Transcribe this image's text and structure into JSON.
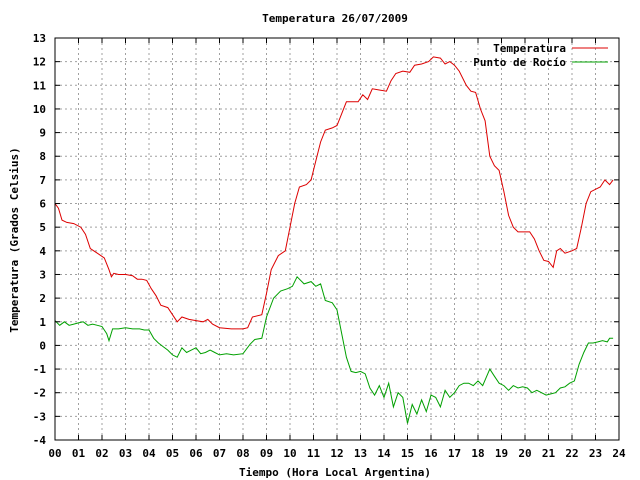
{
  "chart_data": {
    "type": "line",
    "title": "Temperatura 26/07/2009",
    "xlabel": "Tiempo (Hora Local Argentina)",
    "ylabel": "Temperatura (Grados Celsius)",
    "xlim": [
      0,
      24
    ],
    "ylim": [
      -4,
      13
    ],
    "x_ticks": [
      "00",
      "01",
      "02",
      "03",
      "04",
      "05",
      "06",
      "07",
      "08",
      "09",
      "10",
      "11",
      "12",
      "13",
      "14",
      "15",
      "16",
      "17",
      "18",
      "19",
      "20",
      "21",
      "22",
      "23",
      "24"
    ],
    "y_ticks": [
      -4,
      -3,
      -2,
      -1,
      0,
      1,
      2,
      3,
      4,
      5,
      6,
      7,
      8,
      9,
      10,
      11,
      12,
      13
    ],
    "grid": true,
    "legend_position": "top-right",
    "series": [
      {
        "name": "Temperatura",
        "color": "#dd0000",
        "points": [
          [
            0,
            6.0
          ],
          [
            0.15,
            5.8
          ],
          [
            0.3,
            5.3
          ],
          [
            0.5,
            5.2
          ],
          [
            0.8,
            5.15
          ],
          [
            1.1,
            5.0
          ],
          [
            1.3,
            4.7
          ],
          [
            1.5,
            4.1
          ],
          [
            1.8,
            3.9
          ],
          [
            2.1,
            3.7
          ],
          [
            2.3,
            3.2
          ],
          [
            2.4,
            2.9
          ],
          [
            2.5,
            3.05
          ],
          [
            2.7,
            3.0
          ],
          [
            3.0,
            3.0
          ],
          [
            3.3,
            2.95
          ],
          [
            3.5,
            2.8
          ],
          [
            3.7,
            2.8
          ],
          [
            3.9,
            2.75
          ],
          [
            4.1,
            2.4
          ],
          [
            4.3,
            2.1
          ],
          [
            4.5,
            1.7
          ],
          [
            4.8,
            1.6
          ],
          [
            5.0,
            1.3
          ],
          [
            5.2,
            1.0
          ],
          [
            5.4,
            1.2
          ],
          [
            5.7,
            1.1
          ],
          [
            6.0,
            1.05
          ],
          [
            6.3,
            1.0
          ],
          [
            6.5,
            1.1
          ],
          [
            6.7,
            0.9
          ],
          [
            7.0,
            0.75
          ],
          [
            7.5,
            0.7
          ],
          [
            8.0,
            0.7
          ],
          [
            8.2,
            0.75
          ],
          [
            8.4,
            1.2
          ],
          [
            8.8,
            1.3
          ],
          [
            9.0,
            2.2
          ],
          [
            9.2,
            3.2
          ],
          [
            9.5,
            3.8
          ],
          [
            9.8,
            4.0
          ],
          [
            10.0,
            5.0
          ],
          [
            10.2,
            6.0
          ],
          [
            10.4,
            6.7
          ],
          [
            10.7,
            6.8
          ],
          [
            10.9,
            7.0
          ],
          [
            11.1,
            7.8
          ],
          [
            11.3,
            8.6
          ],
          [
            11.5,
            9.1
          ],
          [
            11.8,
            9.2
          ],
          [
            12.0,
            9.3
          ],
          [
            12.2,
            9.8
          ],
          [
            12.4,
            10.3
          ],
          [
            12.6,
            10.3
          ],
          [
            12.9,
            10.3
          ],
          [
            13.1,
            10.6
          ],
          [
            13.3,
            10.4
          ],
          [
            13.5,
            10.85
          ],
          [
            13.8,
            10.8
          ],
          [
            14.1,
            10.75
          ],
          [
            14.3,
            11.2
          ],
          [
            14.5,
            11.5
          ],
          [
            14.8,
            11.6
          ],
          [
            15.1,
            11.55
          ],
          [
            15.3,
            11.85
          ],
          [
            15.6,
            11.9
          ],
          [
            15.9,
            12.0
          ],
          [
            16.1,
            12.2
          ],
          [
            16.4,
            12.15
          ],
          [
            16.6,
            11.9
          ],
          [
            16.8,
            12.0
          ],
          [
            17.0,
            11.85
          ],
          [
            17.2,
            11.6
          ],
          [
            17.5,
            11.0
          ],
          [
            17.7,
            10.75
          ],
          [
            17.9,
            10.7
          ],
          [
            18.1,
            10.0
          ],
          [
            18.3,
            9.5
          ],
          [
            18.5,
            8.0
          ],
          [
            18.7,
            7.6
          ],
          [
            18.9,
            7.4
          ],
          [
            19.1,
            6.5
          ],
          [
            19.3,
            5.5
          ],
          [
            19.5,
            5.0
          ],
          [
            19.7,
            4.8
          ],
          [
            20.0,
            4.8
          ],
          [
            20.2,
            4.8
          ],
          [
            20.4,
            4.5
          ],
          [
            20.6,
            4.0
          ],
          [
            20.8,
            3.6
          ],
          [
            21.0,
            3.55
          ],
          [
            21.2,
            3.3
          ],
          [
            21.35,
            4.0
          ],
          [
            21.5,
            4.1
          ],
          [
            21.7,
            3.9
          ],
          [
            22.0,
            4.0
          ],
          [
            22.2,
            4.1
          ],
          [
            22.4,
            5.0
          ],
          [
            22.6,
            6.0
          ],
          [
            22.8,
            6.5
          ],
          [
            23.0,
            6.6
          ],
          [
            23.2,
            6.7
          ],
          [
            23.4,
            7.0
          ],
          [
            23.6,
            6.8
          ],
          [
            23.75,
            7.0
          ]
        ]
      },
      {
        "name": "Punto de Rocío",
        "color": "#00a000",
        "points": [
          [
            0,
            1.05
          ],
          [
            0.2,
            0.85
          ],
          [
            0.4,
            1.0
          ],
          [
            0.6,
            0.85
          ],
          [
            0.8,
            0.9
          ],
          [
            1.0,
            0.95
          ],
          [
            1.2,
            1.0
          ],
          [
            1.4,
            0.85
          ],
          [
            1.6,
            0.9
          ],
          [
            1.8,
            0.85
          ],
          [
            2.0,
            0.8
          ],
          [
            2.2,
            0.5
          ],
          [
            2.3,
            0.2
          ],
          [
            2.45,
            0.7
          ],
          [
            2.7,
            0.7
          ],
          [
            3.0,
            0.75
          ],
          [
            3.3,
            0.7
          ],
          [
            3.6,
            0.7
          ],
          [
            3.8,
            0.65
          ],
          [
            4.0,
            0.65
          ],
          [
            4.2,
            0.3
          ],
          [
            4.4,
            0.1
          ],
          [
            4.6,
            -0.05
          ],
          [
            4.8,
            -0.2
          ],
          [
            5.0,
            -0.4
          ],
          [
            5.2,
            -0.5
          ],
          [
            5.4,
            -0.1
          ],
          [
            5.6,
            -0.3
          ],
          [
            5.8,
            -0.2
          ],
          [
            6.0,
            -0.1
          ],
          [
            6.2,
            -0.35
          ],
          [
            6.4,
            -0.3
          ],
          [
            6.6,
            -0.2
          ],
          [
            6.8,
            -0.3
          ],
          [
            7.0,
            -0.4
          ],
          [
            7.3,
            -0.35
          ],
          [
            7.6,
            -0.4
          ],
          [
            8.0,
            -0.35
          ],
          [
            8.3,
            0.05
          ],
          [
            8.5,
            0.25
          ],
          [
            8.8,
            0.3
          ],
          [
            9.0,
            1.2
          ],
          [
            9.3,
            2.0
          ],
          [
            9.6,
            2.3
          ],
          [
            9.9,
            2.4
          ],
          [
            10.1,
            2.5
          ],
          [
            10.3,
            2.9
          ],
          [
            10.6,
            2.6
          ],
          [
            10.9,
            2.7
          ],
          [
            11.1,
            2.5
          ],
          [
            11.3,
            2.6
          ],
          [
            11.5,
            1.9
          ],
          [
            11.8,
            1.8
          ],
          [
            12.0,
            1.5
          ],
          [
            12.2,
            0.5
          ],
          [
            12.4,
            -0.5
          ],
          [
            12.6,
            -1.1
          ],
          [
            12.8,
            -1.15
          ],
          [
            13.0,
            -1.1
          ],
          [
            13.2,
            -1.2
          ],
          [
            13.4,
            -1.8
          ],
          [
            13.6,
            -2.1
          ],
          [
            13.8,
            -1.7
          ],
          [
            14.0,
            -2.2
          ],
          [
            14.2,
            -1.6
          ],
          [
            14.4,
            -2.6
          ],
          [
            14.6,
            -2.0
          ],
          [
            14.8,
            -2.2
          ],
          [
            15.0,
            -3.3
          ],
          [
            15.2,
            -2.5
          ],
          [
            15.4,
            -2.9
          ],
          [
            15.6,
            -2.3
          ],
          [
            15.8,
            -2.8
          ],
          [
            16.0,
            -2.1
          ],
          [
            16.2,
            -2.2
          ],
          [
            16.4,
            -2.6
          ],
          [
            16.6,
            -1.9
          ],
          [
            16.8,
            -2.2
          ],
          [
            17.0,
            -2.0
          ],
          [
            17.2,
            -1.7
          ],
          [
            17.4,
            -1.6
          ],
          [
            17.6,
            -1.6
          ],
          [
            17.8,
            -1.7
          ],
          [
            18.0,
            -1.5
          ],
          [
            18.2,
            -1.7
          ],
          [
            18.5,
            -1.0
          ],
          [
            18.7,
            -1.3
          ],
          [
            18.9,
            -1.6
          ],
          [
            19.1,
            -1.7
          ],
          [
            19.3,
            -1.9
          ],
          [
            19.5,
            -1.7
          ],
          [
            19.7,
            -1.8
          ],
          [
            19.9,
            -1.75
          ],
          [
            20.1,
            -1.8
          ],
          [
            20.3,
            -2.0
          ],
          [
            20.5,
            -1.9
          ],
          [
            20.7,
            -2.0
          ],
          [
            20.9,
            -2.1
          ],
          [
            21.1,
            -2.05
          ],
          [
            21.3,
            -2.0
          ],
          [
            21.5,
            -1.8
          ],
          [
            21.7,
            -1.75
          ],
          [
            21.9,
            -1.6
          ],
          [
            22.1,
            -1.5
          ],
          [
            22.3,
            -0.8
          ],
          [
            22.5,
            -0.3
          ],
          [
            22.7,
            0.1
          ],
          [
            22.9,
            0.1
          ],
          [
            23.1,
            0.15
          ],
          [
            23.3,
            0.2
          ],
          [
            23.5,
            0.15
          ],
          [
            23.6,
            0.3
          ],
          [
            23.75,
            0.3
          ]
        ]
      }
    ]
  }
}
